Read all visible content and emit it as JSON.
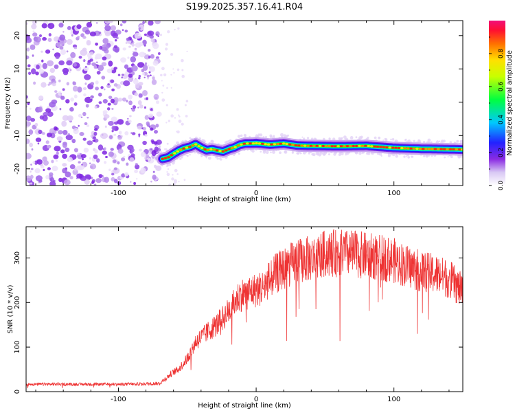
{
  "title": "S199.2025.357.16.41.R04",
  "chart_data": [
    {
      "type": "heatmap",
      "xlabel": "Height of straight line (km)",
      "ylabel": "Frequency (Hz)",
      "xlim": [
        -167,
        150
      ],
      "ylim": [
        -25,
        24.5
      ],
      "x_ticks": [
        -100,
        0,
        100
      ],
      "x_tick_labels": [
        "-100",
        "0",
        "100"
      ],
      "y_ticks": [
        -20,
        -10,
        0,
        10,
        20
      ],
      "y_tick_labels": [
        "-20",
        "-10",
        "0",
        "10",
        "20"
      ],
      "noise_region_x": [
        -167,
        -70
      ],
      "ridge": {
        "x": [
          -68,
          -64,
          -60,
          -56,
          -52,
          -48,
          -44,
          -40,
          -36,
          -32,
          -28,
          -24,
          -20,
          -16,
          -12,
          -8,
          -4,
          0,
          10,
          20,
          30,
          40,
          60,
          80,
          100,
          120,
          140,
          150
        ],
        "y": [
          -17,
          -16.6,
          -15.5,
          -14.5,
          -13.8,
          -13.4,
          -12.6,
          -13.6,
          -14.4,
          -14.1,
          -14.5,
          -14.8,
          -14.1,
          -13.6,
          -12.8,
          -12.4,
          -12.4,
          -12.3,
          -12.7,
          -12.4,
          -13.0,
          -13.1,
          -13.2,
          -13.1,
          -13.7,
          -14.0,
          -14.1,
          -14.2
        ]
      },
      "colorbar": {
        "label": "Normalized spectral amplitude",
        "range": [
          0,
          1
        ],
        "ticks": [
          0.0,
          0.2,
          0.4,
          0.6,
          0.8
        ],
        "tick_labels": [
          "0.0",
          "0.2",
          "0.4",
          "0.6",
          "0.8"
        ]
      },
      "grid": false
    },
    {
      "type": "line",
      "xlabel": "Height of straight line (km)",
      "ylabel": "SNR (10 * v/v)",
      "xlim": [
        -167,
        150
      ],
      "ylim": [
        0,
        370
      ],
      "x_ticks": [
        -100,
        0,
        100
      ],
      "x_tick_labels": [
        "-100",
        "0",
        "100"
      ],
      "y_ticks": [
        0,
        100,
        200,
        300
      ],
      "y_tick_labels": [
        "0",
        "100",
        "200",
        "300"
      ],
      "color": "#ee3333",
      "envelope": {
        "x": [
          -167,
          -140,
          -100,
          -80,
          -70,
          -62,
          -56,
          -50,
          -44,
          -36,
          -28,
          -20,
          -12,
          -4,
          4,
          12,
          20,
          30,
          40,
          50,
          60,
          70,
          80,
          90,
          100,
          110,
          120,
          130,
          140,
          150
        ],
        "y": [
          16,
          16,
          16,
          17,
          18,
          38,
          50,
          72,
          108,
          128,
          148,
          175,
          210,
          218,
          225,
          252,
          268,
          285,
          290,
          300,
          302,
          300,
          296,
          292,
          286,
          272,
          262,
          256,
          246,
          218
        ]
      },
      "grid": false
    }
  ]
}
